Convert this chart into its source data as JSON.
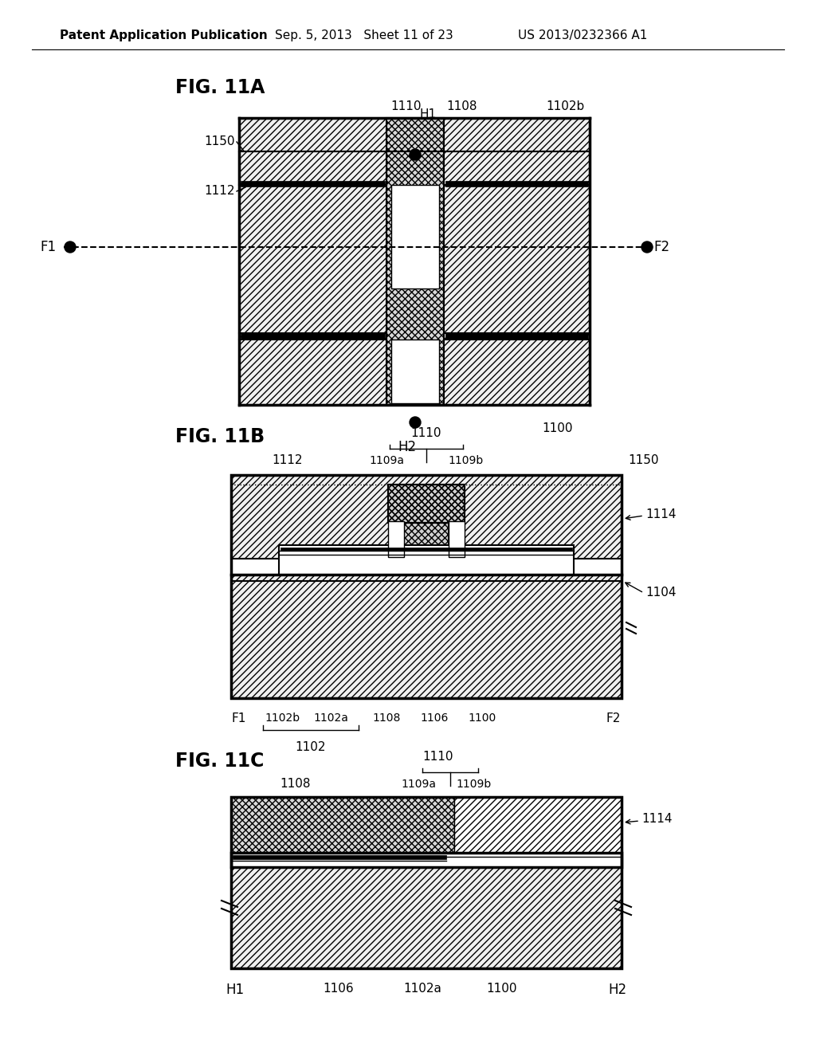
{
  "title_header_left": "Patent Application Publication",
  "title_header_mid": "Sep. 5, 2013   Sheet 11 of 23",
  "title_header_right": "US 2013/0232366 A1",
  "bg_color": "#ffffff",
  "line_color": "#000000",
  "hatch_color": "#000000",
  "fig_labels": [
    "FIG. 11A",
    "FIG. 11B",
    "FIG. 11C"
  ]
}
